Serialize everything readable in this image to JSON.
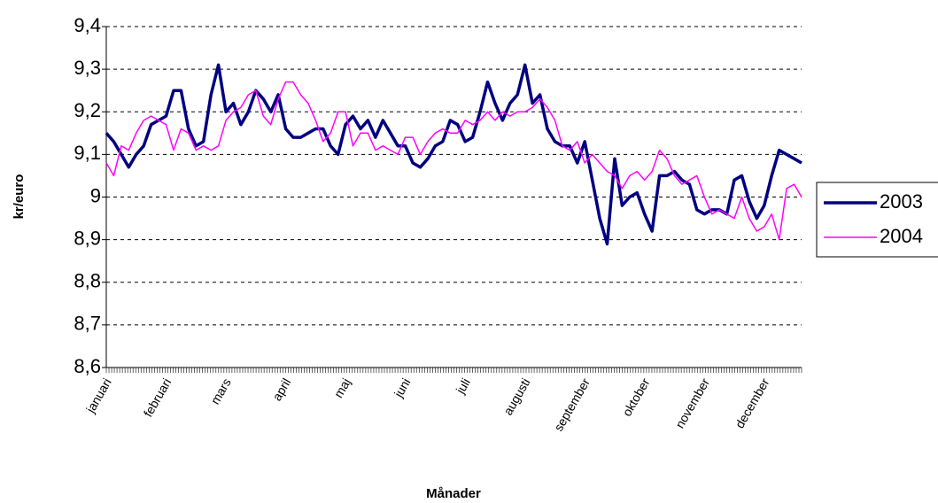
{
  "chart_data": {
    "type": "line",
    "xlabel": "Månader",
    "ylabel": "kr/euro",
    "categories": [
      "januari",
      null,
      null,
      null,
      null,
      null,
      null,
      null,
      "februari",
      null,
      null,
      null,
      null,
      null,
      null,
      null,
      "mars",
      null,
      null,
      null,
      null,
      null,
      null,
      null,
      "april",
      null,
      null,
      null,
      null,
      null,
      null,
      null,
      "maj",
      null,
      null,
      null,
      null,
      null,
      null,
      null,
      "juni",
      null,
      null,
      null,
      null,
      null,
      null,
      null,
      "juli",
      null,
      null,
      null,
      null,
      null,
      null,
      null,
      "augusti",
      null,
      null,
      null,
      null,
      null,
      null,
      null,
      "september",
      null,
      null,
      null,
      null,
      null,
      null,
      null,
      "oktober",
      null,
      null,
      null,
      null,
      null,
      null,
      null,
      "november",
      null,
      null,
      null,
      null,
      null,
      null,
      null,
      "december",
      null,
      null,
      null,
      null,
      null
    ],
    "series": [
      {
        "name": "2003",
        "color": "#000080",
        "values": [
          9.15,
          9.13,
          9.1,
          9.07,
          9.1,
          9.12,
          9.17,
          9.18,
          9.19,
          9.25,
          9.25,
          9.16,
          9.12,
          9.13,
          9.24,
          9.31,
          9.2,
          9.22,
          9.17,
          9.2,
          9.25,
          9.23,
          9.2,
          9.24,
          9.16,
          9.14,
          9.14,
          9.15,
          9.16,
          9.16,
          9.12,
          9.1,
          9.17,
          9.19,
          9.16,
          9.18,
          9.14,
          9.18,
          9.15,
          9.12,
          9.12,
          9.08,
          9.07,
          9.09,
          9.12,
          9.13,
          9.18,
          9.17,
          9.13,
          9.14,
          9.2,
          9.27,
          9.22,
          9.18,
          9.22,
          9.24,
          9.31,
          9.22,
          9.24,
          9.16,
          9.13,
          9.12,
          9.12,
          9.08,
          9.13,
          9.04,
          8.95,
          8.89,
          9.09,
          8.98,
          9.0,
          9.01,
          8.96,
          8.92,
          9.05,
          9.05,
          9.06,
          9.04,
          9.03,
          8.97,
          8.96,
          8.97,
          8.97,
          8.96,
          9.04,
          9.05,
          8.99,
          8.95,
          8.98,
          9.05,
          9.11,
          9.1,
          9.09,
          9.08
        ]
      },
      {
        "name": "2004",
        "color": "#ff00ff",
        "values": [
          9.08,
          9.05,
          9.12,
          9.11,
          9.15,
          9.18,
          9.19,
          9.18,
          9.17,
          9.11,
          9.16,
          9.15,
          9.11,
          9.12,
          9.11,
          9.12,
          9.18,
          9.2,
          9.21,
          9.24,
          9.25,
          9.19,
          9.17,
          9.23,
          9.27,
          9.27,
          9.24,
          9.22,
          9.18,
          9.13,
          9.15,
          9.2,
          9.2,
          9.12,
          9.15,
          9.15,
          9.11,
          9.12,
          9.11,
          9.1,
          9.14,
          9.14,
          9.1,
          9.13,
          9.15,
          9.16,
          9.15,
          9.15,
          9.18,
          9.17,
          9.18,
          9.2,
          9.18,
          9.2,
          9.19,
          9.2,
          9.2,
          9.21,
          9.23,
          9.21,
          9.18,
          9.12,
          9.11,
          9.13,
          9.08,
          9.1,
          9.08,
          9.06,
          9.05,
          9.02,
          9.05,
          9.06,
          9.04,
          9.06,
          9.11,
          9.09,
          9.05,
          9.03,
          9.04,
          9.05,
          9.0,
          8.96,
          8.97,
          8.96,
          8.95,
          9.0,
          8.95,
          8.92,
          8.93,
          8.96,
          8.9,
          9.02,
          9.03,
          9.0
        ]
      }
    ],
    "ylim": [
      8.6,
      9.4
    ],
    "yticks": [
      {
        "value": 8.6,
        "label": "8,6"
      },
      {
        "value": 8.7,
        "label": "8,7"
      },
      {
        "value": 8.8,
        "label": "8,8"
      },
      {
        "value": 8.9,
        "label": "8,9"
      },
      9,
      {
        "value": 9.1,
        "label": "9,1"
      },
      {
        "value": 9.2,
        "label": "9,2"
      },
      {
        "value": 9.3,
        "label": "9,3"
      },
      {
        "value": 9.4,
        "label": "9,4"
      }
    ],
    "grid": true,
    "legend": "right"
  }
}
